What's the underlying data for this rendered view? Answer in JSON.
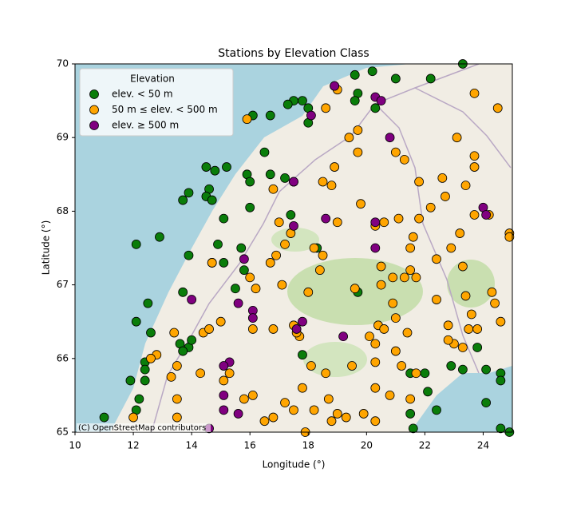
{
  "chart_data": {
    "type": "scatter",
    "title": "Stations by Elevation Class",
    "xlabel": "Longitude (°)",
    "ylabel": "Latitude (°)",
    "xlim": [
      10,
      25
    ],
    "ylim": [
      65,
      70
    ],
    "xticks": [
      10,
      12,
      14,
      16,
      18,
      20,
      22,
      24
    ],
    "yticks": [
      65,
      66,
      67,
      68,
      69,
      70
    ],
    "legend": "upper left",
    "legend_title": "Elevation",
    "attribution": "(C) OpenStreetMap contributors",
    "series": [
      {
        "name": "elev. < 50 m",
        "color": "#0a7d0a",
        "x": [
          23.3,
          21.0,
          20.2,
          22.2,
          19.6,
          19.7,
          19.6,
          20.3,
          17.5,
          17.8,
          18.0,
          17.3,
          16.7,
          16.1,
          18.0,
          16.5,
          15.2,
          14.8,
          14.5,
          15.9,
          16.0,
          14.6,
          14.5,
          14.7,
          13.9,
          13.7,
          16.7,
          17.2,
          15.1,
          16.0,
          17.4,
          12.1,
          12.9,
          14.9,
          15.7,
          14.7,
          15.1,
          15.8,
          13.9,
          15.5,
          13.7,
          12.1,
          12.5,
          12.6,
          13.6,
          13.9,
          13.7,
          14.0,
          12.4,
          12.4,
          12.4,
          11.9,
          12.2,
          11.0,
          12.1,
          19.7,
          17.8,
          18.3,
          21.5,
          22.0,
          22.9,
          23.3,
          23.8,
          24.1,
          24.6,
          24.6,
          24.1,
          22.4,
          22.1,
          21.5,
          21.6,
          24.6,
          24.9
        ],
        "y": [
          70.0,
          69.8,
          69.9,
          69.8,
          69.85,
          69.6,
          69.5,
          69.4,
          69.5,
          69.5,
          69.4,
          69.45,
          69.3,
          69.3,
          69.2,
          68.8,
          68.6,
          68.55,
          68.6,
          68.5,
          68.4,
          68.3,
          68.2,
          68.15,
          68.25,
          68.15,
          68.5,
          68.45,
          67.9,
          68.05,
          67.95,
          67.55,
          67.65,
          67.55,
          67.5,
          67.3,
          67.3,
          67.2,
          67.4,
          66.95,
          66.9,
          66.5,
          66.75,
          66.35,
          66.2,
          66.15,
          66.1,
          66.25,
          65.95,
          65.85,
          65.7,
          65.7,
          65.45,
          65.2,
          65.3,
          66.9,
          66.05,
          67.5,
          65.8,
          65.8,
          65.9,
          65.85,
          66.15,
          65.85,
          65.8,
          65.7,
          65.4,
          65.3,
          65.55,
          65.25,
          65.05,
          65.05,
          65.0
        ]
      },
      {
        "name": "50 m ≤ elev. < 500 m",
        "color": "#ffa500",
        "x": [
          18.9,
          19.0,
          18.6,
          19.4,
          19.7,
          19.7,
          18.9,
          18.5,
          18.8,
          17.5,
          16.8,
          15.9,
          21.0,
          21.3,
          21.8,
          22.6,
          23.1,
          23.7,
          24.5,
          23.7,
          23.7,
          23.4,
          22.7,
          21.8,
          22.2,
          19.8,
          20.3,
          20.6,
          21.1,
          19.0,
          17.0,
          17.2,
          16.9,
          16.7,
          17.4,
          18.2,
          18.5,
          18.4,
          17.1,
          18.0,
          19.6,
          20.5,
          20.5,
          20.9,
          21.3,
          21.7,
          21.6,
          21.5,
          22.4,
          22.9,
          23.2,
          23.7,
          24.2,
          23.3,
          24.3,
          24.4,
          23.4,
          22.4,
          23.6,
          23.5,
          22.8,
          23.0,
          23.3,
          22.8,
          21.4,
          21.0,
          20.9,
          21.0,
          21.2,
          21.7,
          20.4,
          20.6,
          20.3,
          20.3,
          20.3,
          20.1,
          19.5,
          18.6,
          18.1,
          17.8,
          17.2,
          16.8,
          17.5,
          18.2,
          18.8,
          19.0,
          19.3,
          19.9,
          18.7,
          17.9,
          20.8,
          20.3,
          21.5,
          16.5,
          16.1,
          15.8,
          15.3,
          15.1,
          14.3,
          13.5,
          13.3,
          13.5,
          13.5,
          12.0,
          12.8,
          12.6,
          13.4,
          14.4,
          14.6,
          15.0,
          16.1,
          16.8,
          17.5,
          17.7,
          16.0,
          16.2,
          14.7,
          17.6,
          24.9,
          24.9,
          24.6,
          23.8,
          21.5
        ],
        "y": [
          69.7,
          69.65,
          69.4,
          69.0,
          69.1,
          68.8,
          68.6,
          68.4,
          68.35,
          68.4,
          68.3,
          69.25,
          68.8,
          68.7,
          68.4,
          68.45,
          69.0,
          69.6,
          69.4,
          68.6,
          68.75,
          68.35,
          68.2,
          67.9,
          68.05,
          68.1,
          67.8,
          67.85,
          67.9,
          67.85,
          67.85,
          67.55,
          67.4,
          67.3,
          67.7,
          67.5,
          67.4,
          67.2,
          67.0,
          66.9,
          66.95,
          67.25,
          67.0,
          67.1,
          67.1,
          67.1,
          67.65,
          67.5,
          67.35,
          67.5,
          67.7,
          67.95,
          67.95,
          67.25,
          66.9,
          66.75,
          66.85,
          66.8,
          66.6,
          66.4,
          66.45,
          66.2,
          66.15,
          66.25,
          66.35,
          66.55,
          66.75,
          66.1,
          65.9,
          65.8,
          66.45,
          66.4,
          66.2,
          65.95,
          65.6,
          66.3,
          65.9,
          65.8,
          65.9,
          65.6,
          65.4,
          65.2,
          65.3,
          65.3,
          65.15,
          65.25,
          65.2,
          65.25,
          65.45,
          65.0,
          65.5,
          65.15,
          65.45,
          65.15,
          65.5,
          65.45,
          65.8,
          65.7,
          65.8,
          65.9,
          65.75,
          65.45,
          65.2,
          65.2,
          66.05,
          66.0,
          66.35,
          66.35,
          66.4,
          66.5,
          66.4,
          66.4,
          66.45,
          66.3,
          67.1,
          66.95,
          67.3,
          66.35,
          67.7,
          67.65,
          66.5,
          66.4,
          67.2
        ]
      },
      {
        "name": "elev. ≥ 500 m",
        "color": "#800080",
        "x": [
          20.3,
          20.5,
          18.9,
          18.1,
          20.8,
          17.5,
          18.6,
          20.3,
          24.0,
          24.1,
          17.5,
          15.8,
          15.6,
          16.1,
          16.1,
          14.0,
          17.8,
          17.6,
          19.2,
          15.3,
          15.1,
          15.1,
          15.1,
          15.6,
          14.6,
          20.3
        ],
        "y": [
          69.55,
          69.5,
          69.7,
          69.3,
          69.0,
          68.4,
          67.9,
          67.85,
          68.05,
          67.95,
          67.8,
          67.35,
          66.75,
          66.65,
          66.55,
          66.8,
          66.5,
          66.4,
          66.3,
          65.95,
          65.9,
          65.5,
          65.3,
          65.25,
          65.05,
          67.5
        ]
      }
    ]
  }
}
